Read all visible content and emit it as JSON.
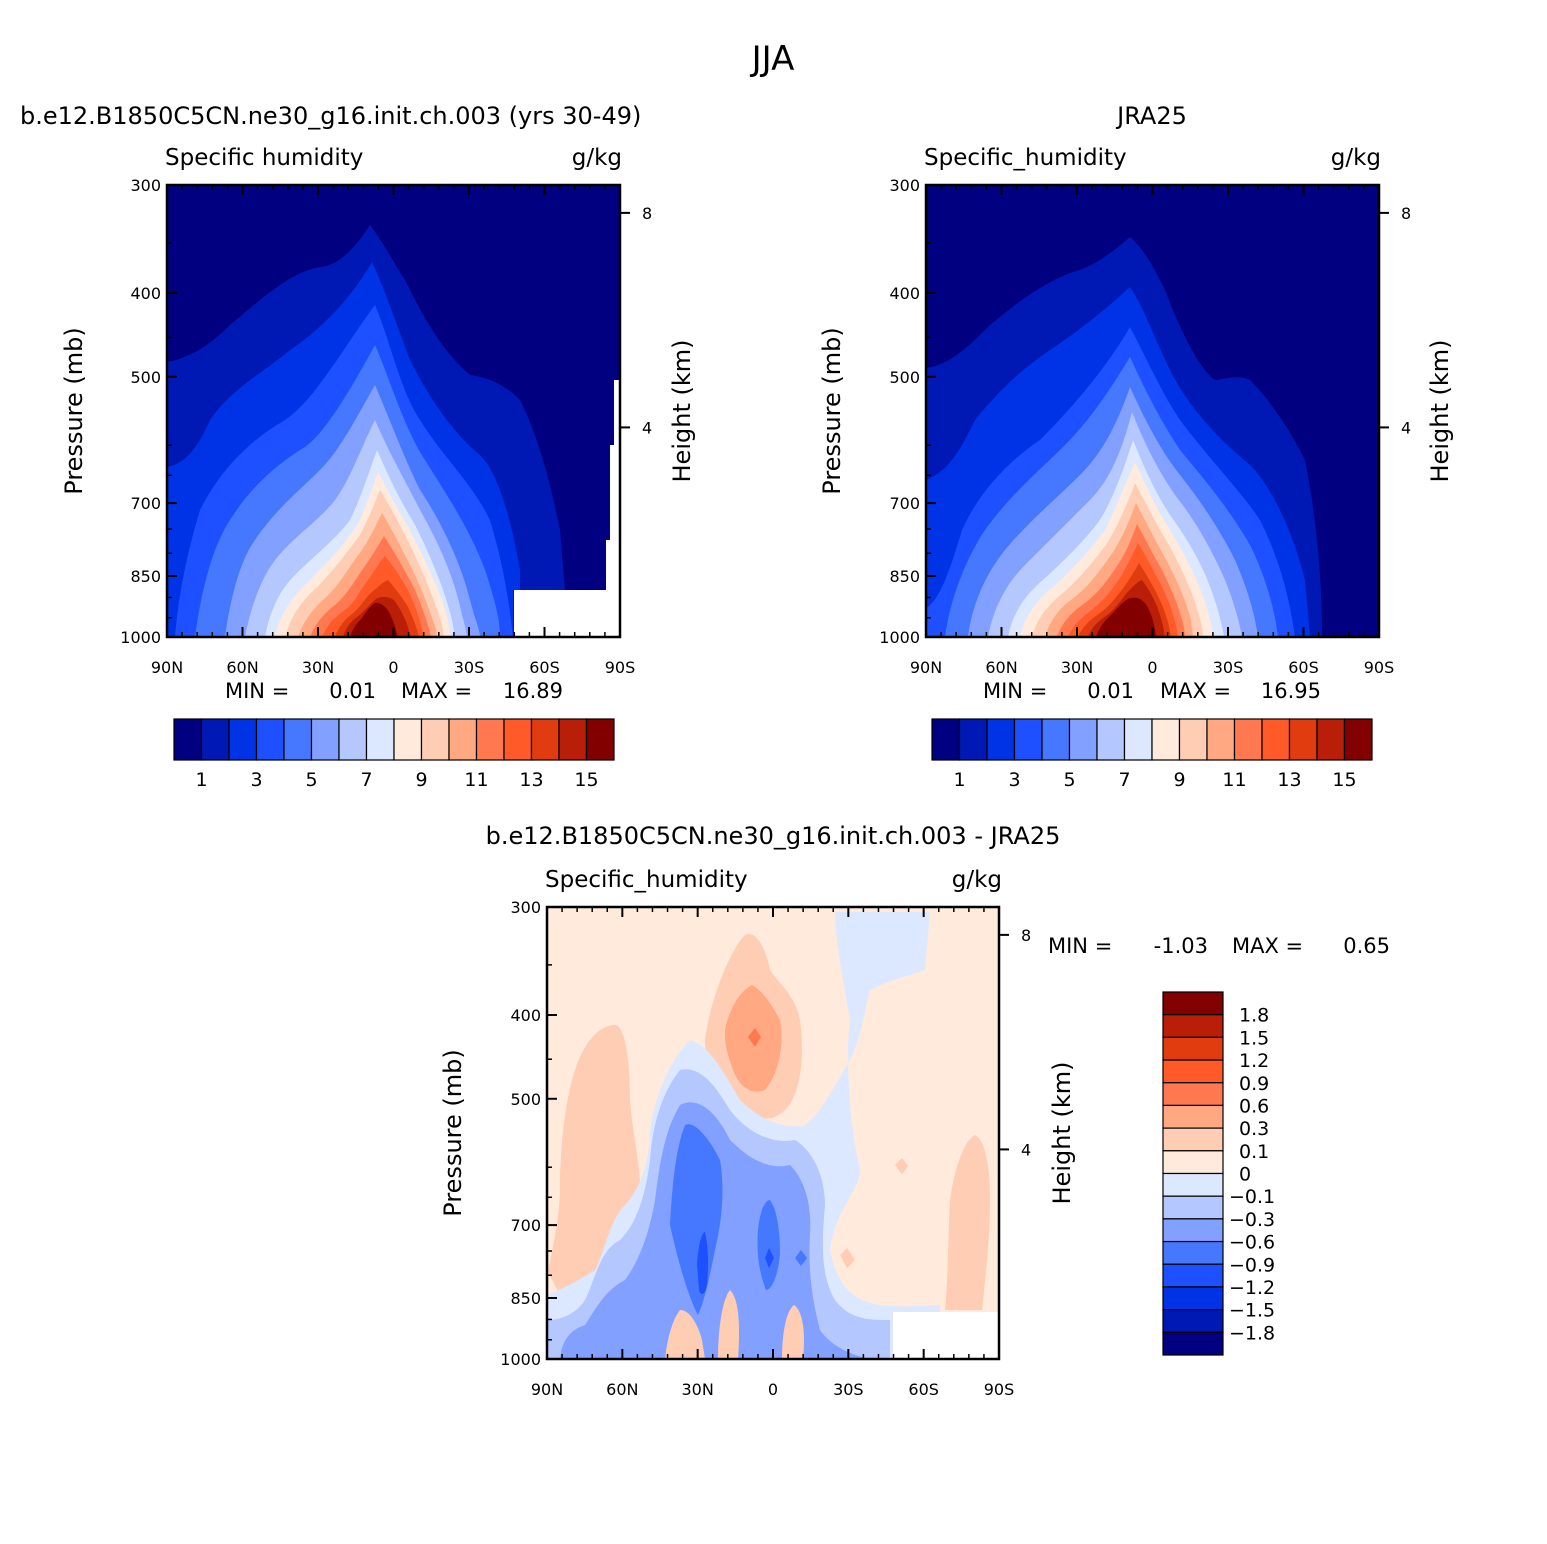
{
  "figure": {
    "season": "JJA"
  },
  "colors": {
    "abs_palette": [
      "#000080",
      "#0019b4",
      "#0032e6",
      "#1e50ff",
      "#4678ff",
      "#82a0ff",
      "#b4c8ff",
      "#dce8ff",
      "#ffeadc",
      "#ffcdb4",
      "#ffa882",
      "#ff7850",
      "#ff5a28",
      "#e13c10",
      "#b91e08",
      "#820000"
    ],
    "diff_palette": [
      "#000080",
      "#0019b4",
      "#0032e6",
      "#1e50ff",
      "#4678ff",
      "#82a0ff",
      "#b4c8ff",
      "#dce8ff",
      "#ffeadc",
      "#ffcdb4",
      "#ffa882",
      "#ff7850",
      "#ff5a28",
      "#e13c10",
      "#b91e08",
      "#820000"
    ],
    "background": "#ffffff"
  },
  "panels": {
    "model": {
      "title": "b.e12.B1850C5CN.ne30_g16.init.ch.003 (yrs 30-49)",
      "variable": "Specific humidity",
      "units": "g/kg",
      "ylabel": "Pressure (mb)",
      "right_label": "Height (km)",
      "min_label": "MIN =",
      "min_value": "0.01",
      "max_label": "MAX =",
      "max_value": "16.89"
    },
    "obs": {
      "title": "JRA25",
      "variable": "Specific_humidity",
      "units": "g/kg",
      "ylabel": "Pressure (mb)",
      "right_label": "Height (km)",
      "min_label": "MIN =",
      "min_value": "0.01",
      "max_label": "MAX =",
      "max_value": "16.95"
    },
    "diff": {
      "title": "b.e12.B1850C5CN.ne30_g16.init.ch.003 - JRA25",
      "variable": "Specific_humidity",
      "units": "g/kg",
      "ylabel": "Pressure (mb)",
      "right_label": "Height (km)",
      "min_label": "MIN =",
      "min_value": "-1.03",
      "max_label": "MAX =",
      "max_value": "0.65"
    }
  },
  "chart_data": [
    {
      "type": "heatmap",
      "title": "b.e12.B1850C5CN.ne30_g16.init.ch.003 (yrs 30-49)",
      "subtitle": "Specific humidity",
      "units": "g/kg",
      "xlabel": "",
      "ylabel": "Pressure (mb)",
      "y2label": "Height (km)",
      "x_ticks": [
        "90N",
        "60N",
        "30N",
        "0",
        "30S",
        "60S",
        "90S"
      ],
      "y_ticks": [
        300,
        400,
        500,
        700,
        850,
        1000
      ],
      "y2_ticks": [
        8,
        4
      ],
      "ylim": [
        1000,
        300
      ],
      "y_scale": "log",
      "contour_levels": [
        1,
        2,
        3,
        4,
        5,
        6,
        7,
        8,
        9,
        10,
        11,
        12,
        13,
        14,
        15
      ],
      "colorbar_labels": [
        "1",
        "3",
        "5",
        "7",
        "9",
        "11",
        "13",
        "15"
      ],
      "min": 0.01,
      "max": 16.89
    },
    {
      "type": "heatmap",
      "title": "JRA25",
      "subtitle": "Specific_humidity",
      "units": "g/kg",
      "xlabel": "",
      "ylabel": "Pressure (mb)",
      "y2label": "Height (km)",
      "x_ticks": [
        "90N",
        "60N",
        "30N",
        "0",
        "30S",
        "60S",
        "90S"
      ],
      "y_ticks": [
        300,
        400,
        500,
        700,
        850,
        1000
      ],
      "y2_ticks": [
        8,
        4
      ],
      "ylim": [
        1000,
        300
      ],
      "y_scale": "log",
      "contour_levels": [
        1,
        2,
        3,
        4,
        5,
        6,
        7,
        8,
        9,
        10,
        11,
        12,
        13,
        14,
        15
      ],
      "colorbar_labels": [
        "1",
        "3",
        "5",
        "7",
        "9",
        "11",
        "13",
        "15"
      ],
      "min": 0.01,
      "max": 16.95
    },
    {
      "type": "heatmap",
      "title": "b.e12.B1850C5CN.ne30_g16.init.ch.003 - JRA25",
      "subtitle": "Specific_humidity",
      "units": "g/kg",
      "xlabel": "",
      "ylabel": "Pressure (mb)",
      "y2label": "Height (km)",
      "x_ticks": [
        "90N",
        "60N",
        "30N",
        "0",
        "30S",
        "60S",
        "90S"
      ],
      "y_ticks": [
        300,
        400,
        500,
        700,
        850,
        1000
      ],
      "y2_ticks": [
        8,
        4
      ],
      "ylim": [
        1000,
        300
      ],
      "y_scale": "log",
      "contour_levels": [
        -1.8,
        -1.5,
        -1.2,
        -0.9,
        -0.6,
        -0.3,
        -0.1,
        0,
        0.1,
        0.3,
        0.6,
        0.9,
        1.2,
        1.5,
        1.8
      ],
      "colorbar_labels": [
        "1.8",
        "1.5",
        "1.2",
        "0.9",
        "0.6",
        "0.3",
        "0.1",
        "0",
        "-0.1",
        "-0.3",
        "-0.6",
        "-0.9",
        "-1.2",
        "-1.5",
        "-1.8"
      ],
      "min": -1.03,
      "max": 0.65
    }
  ]
}
